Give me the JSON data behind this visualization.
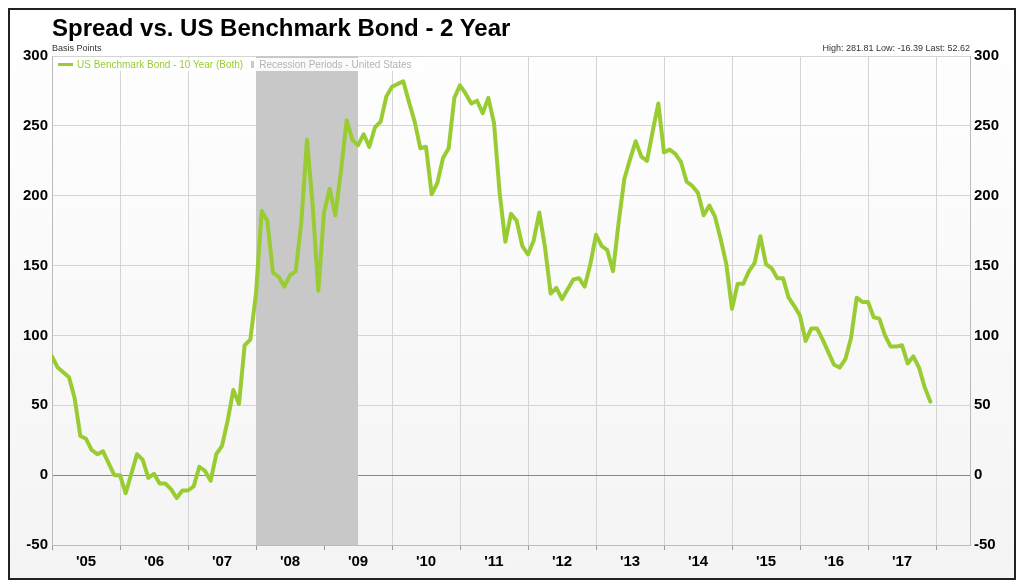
{
  "chart_data": {
    "type": "line",
    "title": "Spread vs. US Benchmark Bond - 2 Year",
    "ylabel": "Basis Points",
    "annotations": [
      "High: 281.81 Low: -16.39 Last: 52.62"
    ],
    "series": [
      {
        "name": "US Benchmark Bond - 10 Year (Both)",
        "color": "#99cc33",
        "x": [
          "2005-01",
          "2005-02",
          "2005-04",
          "2005-05",
          "2005-06",
          "2005-07",
          "2005-08",
          "2005-09",
          "2005-10",
          "2005-12",
          "2006-01",
          "2006-02",
          "2006-04",
          "2006-05",
          "2006-06",
          "2006-07",
          "2006-08",
          "2006-09",
          "2006-10",
          "2006-11",
          "2006-12",
          "2007-01",
          "2007-02",
          "2007-03",
          "2007-04",
          "2007-05",
          "2007-06",
          "2007-07",
          "2007-08",
          "2007-09",
          "2007-10",
          "2007-11",
          "2007-12",
          "2008-01",
          "2008-02",
          "2008-03",
          "2008-04",
          "2008-05",
          "2008-06",
          "2008-07",
          "2008-08",
          "2008-09",
          "2008-10",
          "2008-11",
          "2008-12",
          "2009-01",
          "2009-02",
          "2009-03",
          "2009-04",
          "2009-05",
          "2009-06",
          "2009-07",
          "2009-08",
          "2009-09",
          "2009-10",
          "2009-11",
          "2009-12",
          "2010-01",
          "2010-02",
          "2010-03",
          "2010-04",
          "2010-05",
          "2010-06",
          "2010-07",
          "2010-08",
          "2010-09",
          "2010-10",
          "2010-11",
          "2010-12",
          "2011-01",
          "2011-02",
          "2011-03",
          "2011-04",
          "2011-05",
          "2011-06",
          "2011-07",
          "2011-08",
          "2011-09",
          "2011-10",
          "2011-11",
          "2011-12",
          "2012-01",
          "2012-02",
          "2012-03",
          "2012-04",
          "2012-05",
          "2012-06",
          "2012-07",
          "2012-08",
          "2012-09",
          "2012-10",
          "2012-11",
          "2012-12",
          "2013-01",
          "2013-02",
          "2013-03",
          "2013-04",
          "2013-05",
          "2013-06",
          "2013-07",
          "2013-08",
          "2013-09",
          "2013-10",
          "2013-11",
          "2013-12",
          "2014-01",
          "2014-02",
          "2014-03",
          "2014-04",
          "2014-05",
          "2014-06",
          "2014-07",
          "2014-08",
          "2014-09",
          "2014-10",
          "2014-11",
          "2014-12",
          "2015-01",
          "2015-02",
          "2015-03",
          "2015-04",
          "2015-05",
          "2015-06",
          "2015-07",
          "2015-08",
          "2015-09",
          "2015-10",
          "2015-11",
          "2015-12",
          "2016-01",
          "2016-02",
          "2016-03",
          "2016-04",
          "2016-05",
          "2016-06",
          "2016-07",
          "2016-08",
          "2016-09",
          "2016-10",
          "2016-11",
          "2016-12",
          "2017-01",
          "2017-02",
          "2017-03",
          "2017-04",
          "2017-05",
          "2017-06",
          "2017-07",
          "2017-08",
          "2017-09",
          "2017-10",
          "2017-11",
          "2017-12"
        ],
        "values": [
          85,
          77,
          70,
          55,
          28,
          26,
          18,
          15,
          17,
          0,
          0,
          -13,
          15,
          11,
          -2,
          1,
          -6,
          -6,
          -10,
          -16.39,
          -11,
          -11,
          -8,
          6,
          3,
          -4,
          15,
          21,
          39,
          61,
          51,
          93,
          97,
          130,
          189,
          182,
          145,
          142,
          135,
          143,
          146,
          181,
          240,
          193,
          132,
          188,
          205,
          186,
          218,
          254,
          240,
          236,
          244,
          235,
          249,
          253,
          271,
          278,
          280,
          281.81,
          267,
          253,
          234,
          235,
          201,
          209,
          227,
          234,
          270,
          279,
          273,
          266,
          268,
          259,
          270,
          252,
          202,
          167,
          187,
          182,
          164,
          158,
          168,
          188,
          163,
          130,
          134,
          126,
          133,
          140,
          141,
          135,
          151,
          172,
          164,
          161,
          146,
          181,
          212,
          226,
          239,
          228,
          225,
          246,
          266,
          231,
          233,
          230,
          224,
          210,
          207,
          202,
          186,
          193,
          185,
          169,
          151,
          119,
          137,
          137,
          146,
          152,
          171,
          151,
          148,
          141,
          141,
          127,
          121,
          114,
          96,
          105,
          105,
          97,
          88,
          79,
          77,
          83,
          98,
          127,
          124,
          124,
          113,
          112,
          100,
          92,
          92,
          93,
          80,
          85,
          77,
          63,
          52.62
        ]
      }
    ],
    "xlim": [
      "2005-01",
      "2018-07"
    ],
    "xticks": [
      {
        "value": "2005-01",
        "label": null
      },
      {
        "value": "2005-07",
        "label": "'05"
      },
      {
        "value": "2006-01",
        "label": null
      },
      {
        "value": "2006-07",
        "label": "'06"
      },
      {
        "value": "2007-01",
        "label": null
      },
      {
        "value": "2007-07",
        "label": "'07"
      },
      {
        "value": "2008-01",
        "label": null
      },
      {
        "value": "2008-07",
        "label": "'08"
      },
      {
        "value": "2009-01",
        "label": null
      },
      {
        "value": "2009-07",
        "label": "'09"
      },
      {
        "value": "2010-01",
        "label": null
      },
      {
        "value": "2010-07",
        "label": "'10"
      },
      {
        "value": "2011-01",
        "label": null
      },
      {
        "value": "2011-07",
        "label": "'11"
      },
      {
        "value": "2012-01",
        "label": null
      },
      {
        "value": "2012-07",
        "label": "'12"
      },
      {
        "value": "2013-01",
        "label": null
      },
      {
        "value": "2013-07",
        "label": "'13"
      },
      {
        "value": "2014-01",
        "label": null
      },
      {
        "value": "2014-07",
        "label": "'14"
      },
      {
        "value": "2015-01",
        "label": null
      },
      {
        "value": "2015-07",
        "label": "'15"
      },
      {
        "value": "2016-01",
        "label": null
      },
      {
        "value": "2016-07",
        "label": "'16"
      },
      {
        "value": "2017-01",
        "label": null
      },
      {
        "value": "2017-07",
        "label": "'17"
      },
      {
        "value": "2018-01",
        "label": null
      }
    ],
    "ylim": [
      -50,
      300
    ],
    "yticks": [
      -50,
      0,
      50,
      100,
      150,
      200,
      250,
      300
    ],
    "y2lim": [
      -50,
      300
    ],
    "y2ticks": [
      -50,
      0,
      50,
      100,
      150,
      200,
      250,
      300
    ],
    "bands": [
      {
        "axis": "x",
        "from": "2008-01",
        "to": "2009-07",
        "label": "Recession Periods - United States",
        "color": "#c8c8c8"
      }
    ],
    "grid": true,
    "legend": "top left",
    "marker": "none",
    "line_style": "solid"
  }
}
